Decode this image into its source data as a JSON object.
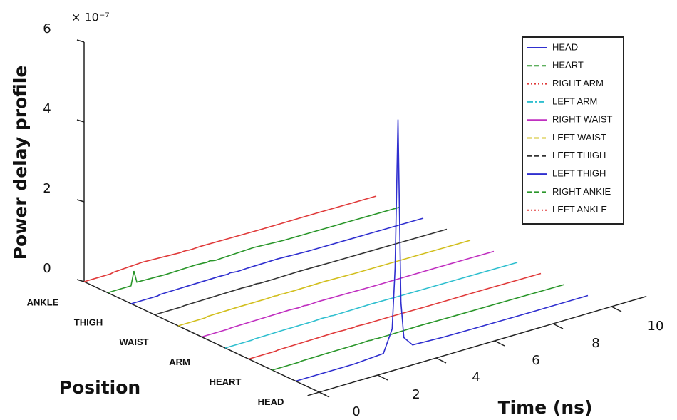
{
  "chart_data": {
    "type": "waterfall3d",
    "y_multiplier": "× 10⁻⁷",
    "ylabel": "Power delay profile",
    "position_label": "Position",
    "xlabel": "Time (ns)",
    "position_labels": [
      "ANKLE",
      "THIGH",
      "WAIST",
      "ARM",
      "HEART",
      "HEAD"
    ],
    "x": [
      0,
      0.8,
      0.9,
      1,
      2,
      3,
      3.3,
      3.4,
      3.5,
      3.6,
      3.7,
      4,
      5,
      6,
      8,
      10
    ],
    "xlim": [
      0,
      10
    ],
    "xticks": [
      0,
      2,
      4,
      6,
      8,
      10
    ],
    "ylim": [
      0,
      6
    ],
    "yticks": [
      0,
      2,
      4,
      6
    ],
    "series": [
      {
        "name": "HEAD",
        "color": "#2f2fcf",
        "linestyle": "solid",
        "values": [
          0,
          0,
          0,
          0,
          0,
          0.05,
          0.6,
          2.1,
          5.8,
          1.2,
          0.3,
          0.05,
          0.02,
          0.01,
          0,
          0
        ]
      },
      {
        "name": "HEART",
        "color": "#2a962a",
        "linestyle": "dashed",
        "values": [
          0,
          0,
          0,
          0.01,
          0.02,
          0.02,
          0.03,
          0.02,
          0.03,
          0.02,
          0.02,
          0.02,
          0.03,
          0.02,
          0.01,
          0
        ]
      },
      {
        "name": "RIGHT ARM",
        "color": "#e03a3a",
        "linestyle": "dotted",
        "values": [
          0,
          0,
          0,
          0.01,
          0.02,
          0.03,
          0.02,
          0.03,
          0.02,
          0.02,
          0.03,
          0.02,
          0.02,
          0.01,
          0.01,
          0
        ]
      },
      {
        "name": "LEFT ARM",
        "color": "#2fbfcf",
        "linestyle": "dashdot",
        "values": [
          0,
          0,
          0,
          0.01,
          0.02,
          0.02,
          0.03,
          0.03,
          0.02,
          0.03,
          0.02,
          0.02,
          0.03,
          0.02,
          0.01,
          0
        ]
      },
      {
        "name": "RIGHT WAIST",
        "color": "#c02fc0",
        "linestyle": "solid",
        "values": [
          0,
          0,
          0,
          0.01,
          0.02,
          0.03,
          0.02,
          0.02,
          0.03,
          0.02,
          0.02,
          0.03,
          0.02,
          0.01,
          0.01,
          0
        ]
      },
      {
        "name": "LEFT WAIST",
        "color": "#d2bf1e",
        "linestyle": "dashed",
        "values": [
          0,
          0,
          0,
          0.02,
          0.03,
          0.03,
          0.04,
          0.03,
          0.04,
          0.03,
          0.03,
          0.03,
          0.04,
          0.02,
          0.01,
          0
        ]
      },
      {
        "name": "LEFT THIGH",
        "color": "#333333",
        "linestyle": "dashed",
        "values": [
          0,
          0,
          0,
          0.01,
          0.02,
          0.03,
          0.02,
          0.03,
          0.03,
          0.02,
          0.02,
          0.02,
          0.03,
          0.02,
          0.01,
          0
        ]
      },
      {
        "name": "LEFT THIGH",
        "color": "#2f2fcf",
        "linestyle": "solid",
        "values": [
          0,
          0,
          0,
          0.02,
          0.03,
          0.04,
          0.03,
          0.05,
          0.04,
          0.03,
          0.03,
          0.04,
          0.05,
          0.02,
          0.01,
          0
        ]
      },
      {
        "name": "RIGHT ANKIE",
        "color": "#2a962a",
        "linestyle": "dashed",
        "values": [
          0,
          0,
          0.35,
          0.05,
          0.03,
          0.05,
          0.04,
          0.03,
          0.05,
          0.03,
          0.02,
          0.03,
          0.06,
          0.02,
          0.01,
          0
        ]
      },
      {
        "name": "LEFT ANKLE",
        "color": "#e03a3a",
        "linestyle": "dotted",
        "values": [
          0,
          0,
          0,
          0.02,
          0.06,
          0.03,
          0.02,
          0.03,
          0.03,
          0.02,
          0.02,
          0.03,
          0.02,
          0.01,
          0.01,
          0
        ]
      }
    ]
  }
}
